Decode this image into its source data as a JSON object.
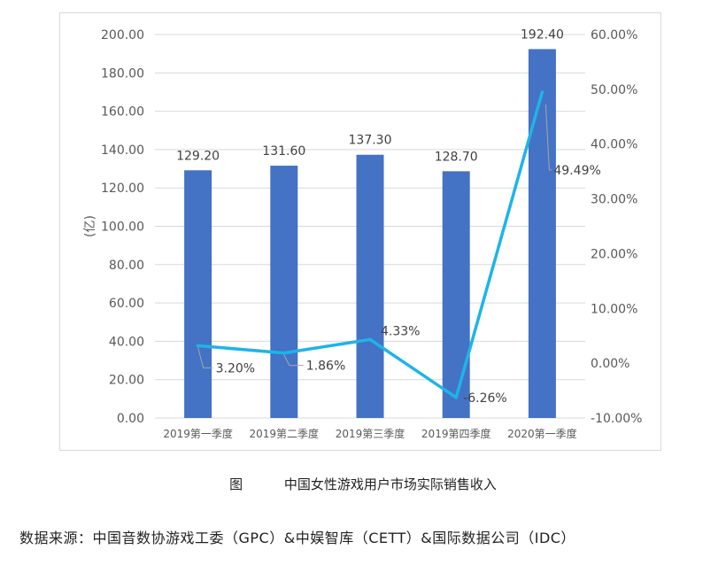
{
  "chart_data": {
    "type": "bar+line",
    "categories": [
      "2019第一季度",
      "2019第二季度",
      "2019第三季度",
      "2019第四季度",
      "2020第一季度"
    ],
    "series": [
      {
        "type": "bar",
        "values": [
          129.2,
          131.6,
          137.3,
          128.7,
          192.4
        ],
        "labels": [
          "129.20",
          "131.60",
          "137.30",
          "128.70",
          "192.40"
        ],
        "axis": "left",
        "color": "#4472C4"
      },
      {
        "type": "line",
        "values": [
          3.2,
          1.86,
          4.33,
          -6.26,
          49.49
        ],
        "labels": [
          "3.20%",
          "1.86%",
          "4.33%",
          "-6.26%",
          "49.49%"
        ],
        "axis": "right",
        "color": "#1EB4E8"
      }
    ],
    "ylabel": "(亿)",
    "ylim": [
      0,
      200
    ],
    "y_ticks": [
      "0.00",
      "20.00",
      "40.00",
      "60.00",
      "80.00",
      "100.00",
      "120.00",
      "140.00",
      "160.00",
      "180.00",
      "200.00"
    ],
    "y2lim": [
      -10,
      60
    ],
    "y2_ticks": [
      "-10.00%",
      "0.00%",
      "10.00%",
      "20.00%",
      "30.00%",
      "40.00%",
      "50.00%",
      "60.00%"
    ],
    "grid": true
  },
  "caption": {
    "fig": "图",
    "text": "中国女性游戏用户市场实际销售收入"
  },
  "source": "数据来源：中国音数协游戏工委（GPC）&中娱智库（CETT）&国际数据公司（IDC）"
}
